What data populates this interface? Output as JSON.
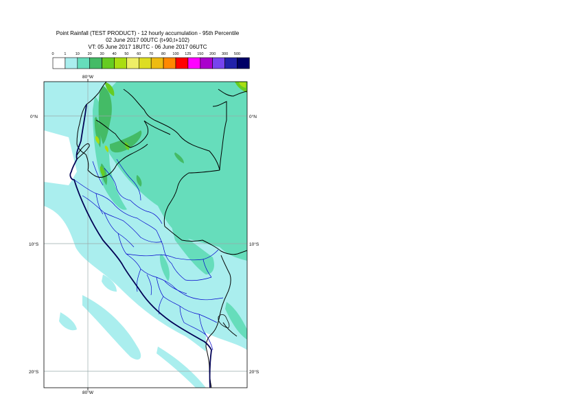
{
  "title": {
    "line1": "Point Rainfall (TEST PRODUCT) - 12 hourly accumulation - 95th Percentile",
    "line2": "02 June 2017 00UTC (t+90,t+102)",
    "line3": "VT: 05 June 2017 18UTC - 06 June 2017 06UTC"
  },
  "legend": {
    "thresholds": [
      "0",
      "1",
      "10",
      "20",
      "30",
      "40",
      "50",
      "60",
      "70",
      "80",
      "100",
      "125",
      "150",
      "200",
      "300",
      "500"
    ],
    "colors": [
      "#ffffff",
      "#aaeeee",
      "#66ddbb",
      "#44bb66",
      "#66cc22",
      "#aadd11",
      "#eeee66",
      "#dddd22",
      "#eebb11",
      "#ff8800",
      "#ff0000",
      "#ff00ff",
      "#aa00cc",
      "#7744ee",
      "#2222aa",
      "#000066"
    ]
  },
  "axes": {
    "lon_top": "80°W",
    "lon_bottom": "80°W",
    "lat_left": [
      "0°N",
      "10°S",
      "20°S"
    ],
    "lat_right": [
      "0°N",
      "10°S",
      "20°S"
    ]
  }
}
